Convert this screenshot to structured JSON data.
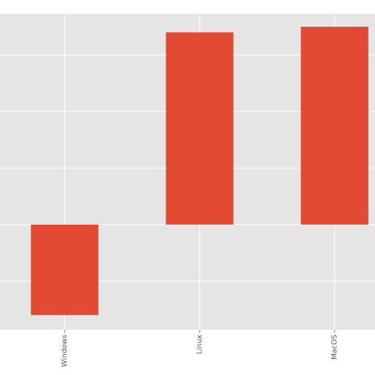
{
  "chart_data": {
    "type": "bar",
    "categories": [
      "Windows",
      "Linux",
      "MacOS"
    ],
    "values": [
      -1.6,
      3.4,
      3.5
    ],
    "color": "#e24a33",
    "ylim": [
      -1.86,
      3.73
    ],
    "yticks": [
      -1,
      0,
      1,
      2,
      3
    ],
    "grid": true
  }
}
